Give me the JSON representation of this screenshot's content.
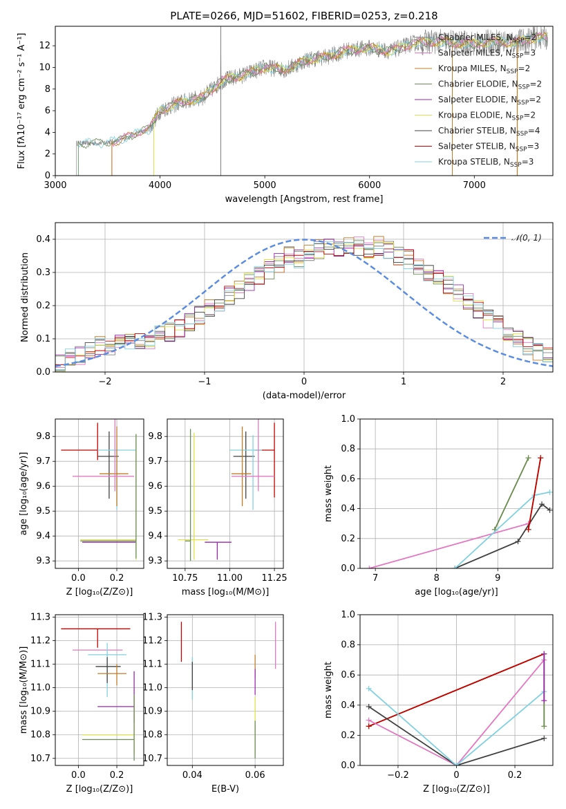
{
  "figure_title": "PLATE=0266, MJD=51602, FIBERID=0253, z=0.218",
  "colors": {
    "Chabrier MILES": "#808080",
    "Salpeter MILES": "#e377c2",
    "Kroupa MILES": "#c07a25",
    "Chabrier ELODIE": "#6a8a5a",
    "Salpeter ELODIE": "#9b27b0",
    "Kroupa ELODIE": "#dde24a",
    "Chabrier STELIB": "#404040",
    "Salpeter STELIB": "#c00000",
    "Kroupa STELIB": "#80d0e0",
    "normal": "#5b8cdf"
  },
  "chart_data": [
    {
      "id": "spectrum",
      "type": "line",
      "xlabel": "wavelength [Angstrom, rest frame]",
      "ylabel": "Flux [fλ10⁻¹⁷ erg cm⁻² s⁻¹ A⁻¹]",
      "xlim": [
        3000,
        7750
      ],
      "ylim": [
        0,
        13.8
      ],
      "xticks": [
        3000,
        4000,
        5000,
        6000,
        7000
      ],
      "yticks": [
        0,
        2,
        4,
        6,
        8,
        10,
        12
      ],
      "grid": false,
      "legend_placement": "right",
      "legend": [
        {
          "label": "Chabrier MILES, N",
          "sub": "SSP",
          "suffix": "=2",
          "color": "#808080"
        },
        {
          "label": "Salpeter MILES, N",
          "sub": "SSP",
          "suffix": "=3",
          "color": "#e377c2"
        },
        {
          "label": "Kroupa MILES, N",
          "sub": "SSP",
          "suffix": "=2",
          "color": "#c07a25"
        },
        {
          "label": "Chabrier ELODIE, N",
          "sub": "SSP",
          "suffix": "=2",
          "color": "#6a8a5a"
        },
        {
          "label": "Salpeter ELODIE, N",
          "sub": "SSP",
          "suffix": "=2",
          "color": "#9b27b0"
        },
        {
          "label": "Kroupa ELODIE, N",
          "sub": "SSP",
          "suffix": "=2",
          "color": "#dde24a"
        },
        {
          "label": "Chabrier STELIB, N",
          "sub": "SSP",
          "suffix": "=4",
          "color": "#404040"
        },
        {
          "label": "Salpeter STELIB, N",
          "sub": "SSP",
          "suffix": "=3",
          "color": "#c00000"
        },
        {
          "label": "Kroupa STELIB, N",
          "sub": "SSP",
          "suffix": "=3",
          "color": "#80d0e0"
        }
      ],
      "observed_continuum": [
        [
          3200,
          3.0
        ],
        [
          3400,
          3.0
        ],
        [
          3600,
          3.2
        ],
        [
          3800,
          4.0
        ],
        [
          3900,
          4.3
        ],
        [
          4000,
          6.0
        ],
        [
          4200,
          6.8
        ],
        [
          4400,
          7.2
        ],
        [
          4600,
          8.8
        ],
        [
          4800,
          9.3
        ],
        [
          5000,
          10.0
        ],
        [
          5200,
          9.8
        ],
        [
          5400,
          10.7
        ],
        [
          5600,
          11.0
        ],
        [
          5800,
          11.6
        ],
        [
          6000,
          11.8
        ],
        [
          6200,
          11.5
        ],
        [
          6400,
          12.2
        ],
        [
          6600,
          12.4
        ],
        [
          6800,
          12.3
        ],
        [
          7000,
          12.2
        ],
        [
          7200,
          12.4
        ],
        [
          7400,
          12.3
        ],
        [
          7600,
          12.8
        ]
      ],
      "model_starts": [
        {
          "color": "#e377c2",
          "x": 3540
        },
        {
          "color": "#c07a25",
          "x": 3540
        },
        {
          "color": "#9b27b0",
          "x": 3940
        },
        {
          "color": "#dde24a",
          "x": 3940
        },
        {
          "color": "#c00000",
          "x": 3540
        }
      ]
    },
    {
      "id": "residuals",
      "type": "step",
      "xlabel": "(data-model)/error",
      "ylabel": "Normed distribution",
      "xlim": [
        -2.5,
        2.5
      ],
      "ylim": [
        0,
        0.45
      ],
      "xticks": [
        -2,
        -1,
        0,
        1,
        2
      ],
      "yticks": [
        0,
        0.1,
        0.2,
        0.3,
        0.4
      ],
      "grid": true,
      "legend": [
        {
          "label": "𝒩(0, 1)",
          "color": "#5b8cdf"
        }
      ],
      "legend_placement": "top-right",
      "bin_width": 0.1,
      "histogram": [
        0.03,
        0.04,
        0.05,
        0.07,
        0.08,
        0.08,
        0.09,
        0.09,
        0.1,
        0.1,
        0.11,
        0.12,
        0.13,
        0.15,
        0.17,
        0.19,
        0.21,
        0.23,
        0.25,
        0.27,
        0.29,
        0.31,
        0.33,
        0.35,
        0.34,
        0.36,
        0.37,
        0.38,
        0.37,
        0.38,
        0.38,
        0.37,
        0.38,
        0.37,
        0.35,
        0.34,
        0.32,
        0.3,
        0.28,
        0.26,
        0.24,
        0.21,
        0.19,
        0.16,
        0.14,
        0.12,
        0.1,
        0.08,
        0.06,
        0.05
      ]
    },
    {
      "id": "age_vs_Z",
      "type": "errorbar",
      "xlabel": "Z [log₁₀(Z/Z⊙)]",
      "ylabel": "age  [log₁₀(age/yr)]",
      "xlim": [
        -0.12,
        0.34
      ],
      "ylim": [
        9.27,
        9.87
      ],
      "xticks": [
        0.0,
        0.2
      ],
      "yticks": [
        9.3,
        9.4,
        9.5,
        9.6,
        9.7,
        9.8
      ],
      "grid": true,
      "points": [
        {
          "color": "#c00000",
          "x": 0.1,
          "xerr": [
            0.19,
            0.0
          ],
          "y": 9.745,
          "yerr": [
            0.04,
            0.11
          ]
        },
        {
          "color": "#404040",
          "x": 0.16,
          "xerr": [
            0.06,
            0.05
          ],
          "y": 9.72,
          "yerr": [
            0.17,
            0.1
          ]
        },
        {
          "color": "#80d0e0",
          "x": 0.2,
          "xerr": [
            0.1,
            0.1
          ],
          "y": 9.745,
          "yerr": [
            0.24,
            0.0
          ]
        },
        {
          "color": "#c07a25",
          "x": 0.2,
          "xerr": [
            0.09,
            0.06
          ],
          "y": 9.65,
          "yerr": [
            0.13,
            0.19
          ]
        },
        {
          "color": "#e377c2",
          "x": 0.19,
          "xerr": [
            0.22,
            0.1
          ],
          "y": 9.64,
          "yerr": [
            0.06,
            0.23
          ]
        },
        {
          "color": "#9b27b0",
          "x": 0.3,
          "xerr": [
            0.28,
            0.0
          ],
          "y": 9.375,
          "yerr": [
            0.0,
            0.0
          ]
        },
        {
          "color": "#dde24a",
          "x": 0.3,
          "xerr": [
            0.29,
            0.0
          ],
          "y": 9.385,
          "yerr": [
            0.08,
            0.42
          ]
        },
        {
          "color": "#6a8a5a",
          "x": 0.3,
          "xerr": [
            0.29,
            0.0
          ],
          "y": 9.38,
          "yerr": [
            0.07,
            0.43
          ]
        }
      ]
    },
    {
      "id": "age_vs_mass",
      "type": "errorbar",
      "xlabel": "mass [log₁₀(M/M⊙)]",
      "ylabel": "",
      "xlim": [
        10.65,
        11.3
      ],
      "ylim": [
        9.27,
        9.87
      ],
      "xticks": [
        10.75,
        11.0,
        11.25
      ],
      "yticks": [
        9.3,
        9.4,
        9.5,
        9.6,
        9.7,
        9.8
      ],
      "grid": true,
      "points": [
        {
          "color": "#c00000",
          "x": 11.25,
          "xerr": [
            0.11,
            0.0
          ],
          "y": 9.745,
          "yerr": [
            0.19,
            0.11
          ]
        },
        {
          "color": "#404040",
          "x": 11.09,
          "xerr": [
            0.07,
            0.05
          ],
          "y": 9.72,
          "yerr": [
            0.17,
            0.1
          ]
        },
        {
          "color": "#80d0e0",
          "x": 11.13,
          "xerr": [
            0.13,
            0.05
          ],
          "y": 9.745,
          "yerr": [
            0.24,
            0.06
          ]
        },
        {
          "color": "#c07a25",
          "x": 11.07,
          "xerr": [
            0.06,
            0.05
          ],
          "y": 9.65,
          "yerr": [
            0.13,
            0.19
          ]
        },
        {
          "color": "#e377c2",
          "x": 11.16,
          "xerr": [
            0.15,
            0.09
          ],
          "y": 9.64,
          "yerr": [
            0.06,
            0.23
          ]
        },
        {
          "color": "#9b27b0",
          "x": 10.93,
          "xerr": [
            0.07,
            0.08
          ],
          "y": 9.375,
          "yerr": [
            0.07,
            0.0
          ]
        },
        {
          "color": "#dde24a",
          "x": 10.8,
          "xerr": [
            0.09,
            0.08
          ],
          "y": 9.385,
          "yerr": [
            0.08,
            0.43
          ]
        },
        {
          "color": "#6a8a5a",
          "x": 10.78,
          "xerr": [
            0.03,
            0.0
          ],
          "y": 9.38,
          "yerr": [
            0.08,
            0.45
          ]
        }
      ]
    },
    {
      "id": "weight_vs_age",
      "type": "line",
      "xlabel": "age  [log₁₀(age/yr)]",
      "ylabel": "mass weight",
      "xlim": [
        6.75,
        9.9
      ],
      "ylim": [
        0,
        1
      ],
      "xticks": [
        7,
        8,
        9
      ],
      "yticks": [
        0,
        0.2,
        0.4,
        0.6,
        0.8,
        1.0
      ],
      "grid": true,
      "series": [
        {
          "color": "#e377c2",
          "points": [
            [
              6.9,
              0.0
            ],
            [
              9.5,
              0.3
            ]
          ]
        },
        {
          "color": "#c07a25",
          "points": [
            [
              9.5,
              0.26
            ],
            [
              9.7,
              0.74
            ]
          ]
        },
        {
          "color": "#dde24a",
          "points": [
            [
              8.95,
              0.26
            ],
            [
              9.5,
              0.74
            ]
          ]
        },
        {
          "color": "#6a8a5a",
          "points": [
            [
              8.95,
              0.26
            ],
            [
              9.5,
              0.74
            ]
          ]
        },
        {
          "color": "#404040",
          "points": [
            [
              8.3,
              0.0
            ],
            [
              9.33,
              0.18
            ],
            [
              9.72,
              0.43
            ],
            [
              9.85,
              0.39
            ]
          ]
        },
        {
          "color": "#80d0e0",
          "points": [
            [
              8.3,
              0.0
            ],
            [
              9.6,
              0.49
            ],
            [
              9.85,
              0.51
            ]
          ]
        },
        {
          "color": "#c00000",
          "points": [
            [
              9.5,
              0.26
            ],
            [
              9.7,
              0.74
            ]
          ]
        }
      ]
    },
    {
      "id": "mass_vs_Z",
      "type": "errorbar",
      "xlabel": "Z [log₁₀(Z/Z⊙)]",
      "ylabel": "mass [log₁₀(M/M⊙)]",
      "xlim": [
        -0.12,
        0.34
      ],
      "ylim": [
        10.67,
        11.31
      ],
      "xticks": [
        0.0,
        0.2
      ],
      "yticks": [
        10.7,
        10.8,
        10.9,
        11.0,
        11.1,
        11.2,
        11.3
      ],
      "grid": true,
      "points": [
        {
          "color": "#c00000",
          "x": 0.1,
          "xerr": [
            0.19,
            0.17
          ],
          "y": 11.25,
          "yerr": [
            0.08,
            0.0
          ]
        },
        {
          "color": "#e377c2",
          "x": 0.19,
          "xerr": [
            0.22,
            0.04
          ],
          "y": 11.16,
          "yerr": [
            0.0,
            0.0
          ]
        },
        {
          "color": "#80d0e0",
          "x": 0.15,
          "xerr": [
            0.1,
            0.1
          ],
          "y": 11.14,
          "yerr": [
            0.18,
            0.05
          ]
        },
        {
          "color": "#404040",
          "x": 0.15,
          "xerr": [
            0.06,
            0.07
          ],
          "y": 11.09,
          "yerr": [
            0.07,
            0.04
          ]
        },
        {
          "color": "#c07a25",
          "x": 0.2,
          "xerr": [
            0.1,
            0.05
          ],
          "y": 11.06,
          "yerr": [
            0.05,
            0.04
          ]
        },
        {
          "color": "#9b27b0",
          "x": 0.29,
          "xerr": [
            0.19,
            0.0
          ],
          "y": 10.92,
          "yerr": [
            0.07,
            0.15
          ]
        },
        {
          "color": "#dde24a",
          "x": 0.29,
          "xerr": [
            0.27,
            0.0
          ],
          "y": 10.8,
          "yerr": [
            0.08,
            0.17
          ]
        },
        {
          "color": "#6a8a5a",
          "x": 0.29,
          "xerr": [
            0.27,
            0.0
          ],
          "y": 10.78,
          "yerr": [
            0.09,
            0.19
          ]
        }
      ]
    },
    {
      "id": "mass_vs_EBV",
      "type": "errorbar",
      "xlabel": "E(B-V)",
      "ylabel": "",
      "xlim": [
        0.032,
        0.069
      ],
      "ylim": [
        10.67,
        11.31
      ],
      "xticks": [
        0.04,
        0.06
      ],
      "yticks": [
        10.7,
        10.8,
        10.9,
        11.0,
        11.1,
        11.2,
        11.3
      ],
      "grid": true,
      "points": [
        {
          "color": "#c00000",
          "x": 0.0365,
          "y": 11.19,
          "yerr": [
            0.08,
            0.09
          ]
        },
        {
          "color": "#80d0e0",
          "x": 0.04,
          "y": 11.03,
          "yerr": [
            0.08,
            0.1
          ]
        },
        {
          "color": "#404040",
          "x": 0.04,
          "y": 11.05,
          "yerr": [
            0.06,
            0.06
          ]
        },
        {
          "color": "#c07a25",
          "x": 0.06,
          "y": 11.09,
          "yerr": [
            0.05,
            0.05
          ]
        },
        {
          "color": "#9b27b0",
          "x": 0.06,
          "y": 11.03,
          "yerr": [
            0.06,
            0.05
          ]
        },
        {
          "color": "#dde24a",
          "x": 0.06,
          "y": 10.84,
          "yerr": [
            0.13,
            0.12
          ]
        },
        {
          "color": "#6a8a5a",
          "x": 0.06,
          "y": 10.78,
          "yerr": [
            0.08,
            0.08
          ]
        },
        {
          "color": "#e377c2",
          "x": 0.0665,
          "y": 11.18,
          "yerr": [
            0.1,
            0.1
          ]
        }
      ]
    },
    {
      "id": "weight_vs_Z",
      "type": "line",
      "xlabel": "Z [log₁₀(Z/Z⊙)]",
      "ylabel": "mass weight",
      "xlim": [
        -0.33,
        0.33
      ],
      "ylim": [
        0,
        1
      ],
      "xticks": [
        -0.2,
        0.0,
        0.2
      ],
      "yticks": [
        0,
        0.2,
        0.4,
        0.6,
        0.8,
        1.0
      ],
      "grid": true,
      "series": [
        {
          "color": "#c07a25",
          "points": [
            [
              -0.3,
              0.26
            ],
            [
              0.3,
              0.74
            ]
          ]
        },
        {
          "color": "#c00000",
          "points": [
            [
              -0.3,
              0.26
            ],
            [
              0.3,
              0.74
            ]
          ]
        },
        {
          "color": "#e377c2",
          "points": [
            [
              -0.3,
              0.3
            ],
            [
              0.0,
              0.0
            ],
            [
              0.3,
              0.7
            ]
          ]
        },
        {
          "color": "#404040",
          "points": [
            [
              -0.3,
              0.39
            ],
            [
              0.0,
              0.0
            ],
            [
              0.3,
              0.18
            ]
          ]
        },
        {
          "color": "#80d0e0",
          "points": [
            [
              -0.3,
              0.51
            ],
            [
              0.0,
              0.0
            ],
            [
              0.3,
              0.49
            ]
          ]
        },
        {
          "color": "#dde24a",
          "points": [
            [
              0.3,
              0.26
            ],
            [
              0.3,
              0.74
            ]
          ]
        },
        {
          "color": "#6a8a5a",
          "points": [
            [
              0.3,
              0.26
            ],
            [
              0.3,
              0.74
            ]
          ]
        },
        {
          "color": "#9b27b0",
          "points": [
            [
              0.3,
              0.43
            ],
            [
              0.3,
              0.74
            ]
          ]
        }
      ]
    }
  ]
}
